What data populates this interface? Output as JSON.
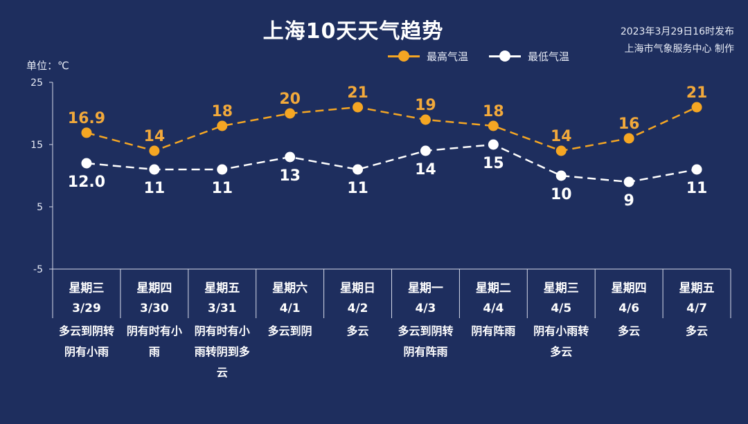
{
  "title": "上海10天天气趋势",
  "publish": {
    "line1": "2023年3月29日16时发布",
    "line2": "上海市气象服务中心 制作"
  },
  "unit_label": "单位：℃",
  "colors": {
    "background": "#1e2e5e",
    "high": "#f5a623",
    "low": "#ffffff",
    "high_text": "#f2a93b"
  },
  "chart_data": {
    "type": "line",
    "title": "上海10天天气趋势",
    "ylabel": "单位：℃",
    "ylim": [
      -5,
      25
    ],
    "yticks": [
      -5,
      5,
      15,
      25
    ],
    "grid": false,
    "legend": "top-center",
    "series": [
      {
        "name": "最高气温",
        "values": [
          16.9,
          14,
          18,
          20,
          21,
          19,
          18,
          14,
          16,
          21
        ],
        "labels": [
          "16.9",
          "14",
          "18",
          "20",
          "21",
          "19",
          "18",
          "14",
          "16",
          "21"
        ]
      },
      {
        "name": "最低气温",
        "values": [
          12.0,
          11,
          11,
          13,
          11,
          14,
          15,
          10,
          9,
          11
        ],
        "labels": [
          "12.0",
          "11",
          "11",
          "13",
          "11",
          "14",
          "15",
          "10",
          "9",
          "11"
        ]
      }
    ],
    "days": [
      {
        "weekday": "星期三",
        "date": "3/29",
        "weather": [
          "多云到阴转",
          "阴有小雨"
        ]
      },
      {
        "weekday": "星期四",
        "date": "3/30",
        "weather": [
          "阴有时有小",
          "雨"
        ]
      },
      {
        "weekday": "星期五",
        "date": "3/31",
        "weather": [
          "阴有时有小",
          "雨转阴到多",
          "云"
        ]
      },
      {
        "weekday": "星期六",
        "date": "4/1",
        "weather": [
          "多云到阴"
        ]
      },
      {
        "weekday": "星期日",
        "date": "4/2",
        "weather": [
          "多云"
        ]
      },
      {
        "weekday": "星期一",
        "date": "4/3",
        "weather": [
          "多云到阴转",
          "阴有阵雨"
        ]
      },
      {
        "weekday": "星期二",
        "date": "4/4",
        "weather": [
          "阴有阵雨"
        ]
      },
      {
        "weekday": "星期三",
        "date": "4/5",
        "weather": [
          "阴有小雨转",
          "多云"
        ]
      },
      {
        "weekday": "星期四",
        "date": "4/6",
        "weather": [
          "多云"
        ]
      },
      {
        "weekday": "星期五",
        "date": "4/7",
        "weather": [
          "多云"
        ]
      }
    ]
  }
}
